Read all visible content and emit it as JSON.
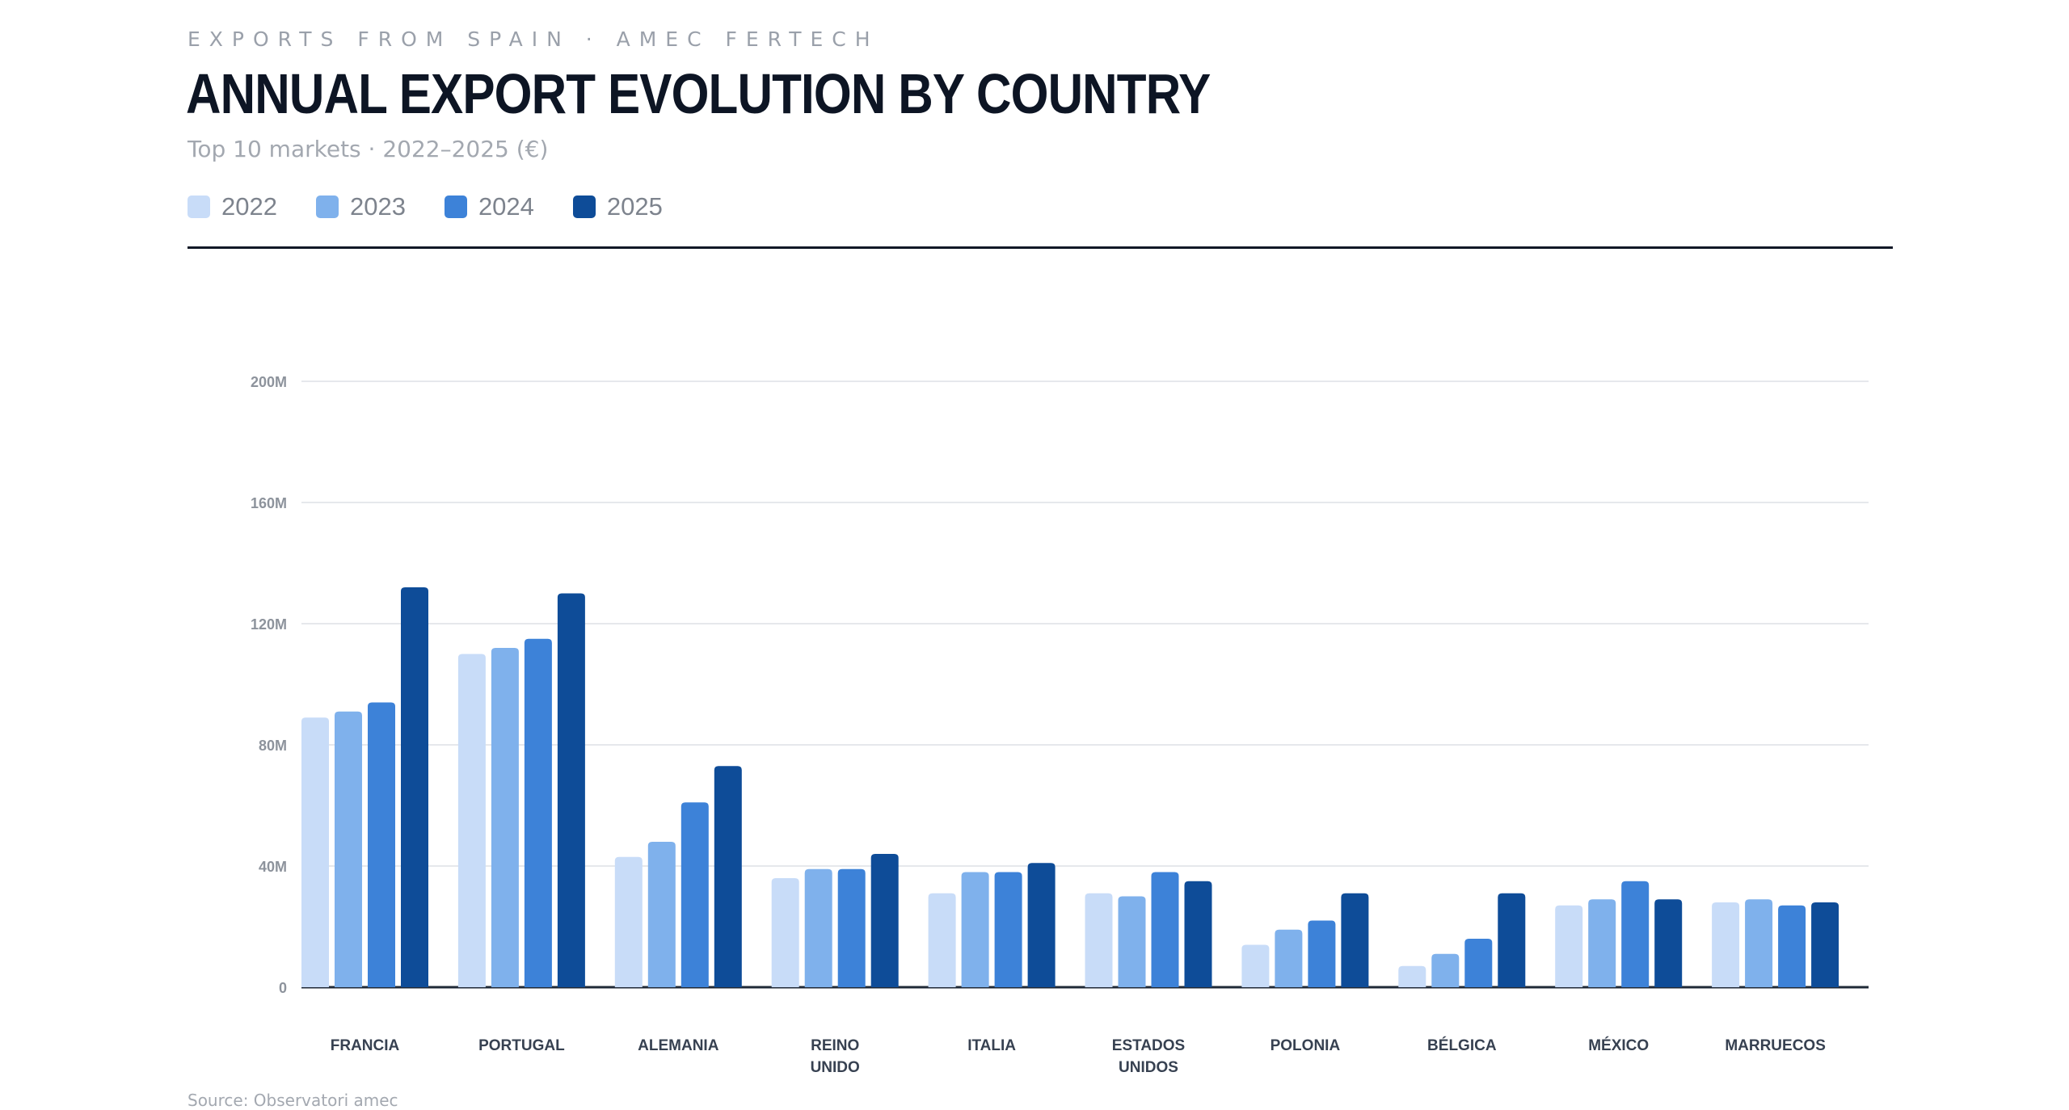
{
  "header": {
    "eyebrow": "EXPORTS FROM SPAIN · AMEC FERTECH",
    "title": "ANNUAL EXPORT EVOLUTION BY COUNTRY",
    "subtitle": "Top 10 markets · 2022–2025 (€)"
  },
  "legend": [
    {
      "label": "2022",
      "color": "#c8dcf8"
    },
    {
      "label": "2023",
      "color": "#7fb1ec"
    },
    {
      "label": "2024",
      "color": "#3d82d8"
    },
    {
      "label": "2025",
      "color": "#0e4c98"
    }
  ],
  "source": "Source: Observatori amec",
  "chart_data": {
    "type": "bar",
    "title": "ANNUAL EXPORT EVOLUTION BY COUNTRY",
    "subtitle": "Top 10 markets · 2022–2025 (€)",
    "xlabel": "",
    "ylabel": "",
    "ylim": [
      0,
      200
    ],
    "yunit": "M",
    "yticks": [
      "0",
      "40M",
      "80M",
      "120M",
      "160M",
      "200M"
    ],
    "grid": true,
    "legend_position": "top-left",
    "categories": [
      [
        "FRANCIA"
      ],
      [
        "PORTUGAL"
      ],
      [
        "ALEMANIA"
      ],
      [
        "REINO",
        "UNIDO"
      ],
      [
        "ITALIA"
      ],
      [
        "ESTADOS",
        "UNIDOS"
      ],
      [
        "POLONIA"
      ],
      [
        "BÉLGICA"
      ],
      [
        "MÉXICO"
      ],
      [
        "MARRUECOS"
      ]
    ],
    "series": [
      {
        "name": "2022",
        "color": "#c8dcf8",
        "values": [
          89,
          110,
          43,
          36,
          31,
          31,
          14,
          7,
          27,
          28
        ]
      },
      {
        "name": "2023",
        "color": "#7fb1ec",
        "values": [
          91,
          112,
          48,
          39,
          38,
          30,
          19,
          11,
          29,
          29
        ]
      },
      {
        "name": "2024",
        "color": "#3d82d8",
        "values": [
          94,
          115,
          61,
          39,
          38,
          38,
          22,
          16,
          35,
          27
        ]
      },
      {
        "name": "2025",
        "color": "#0e4c98",
        "values": [
          132,
          130,
          73,
          44,
          41,
          35,
          31,
          31,
          29,
          28
        ]
      }
    ]
  }
}
